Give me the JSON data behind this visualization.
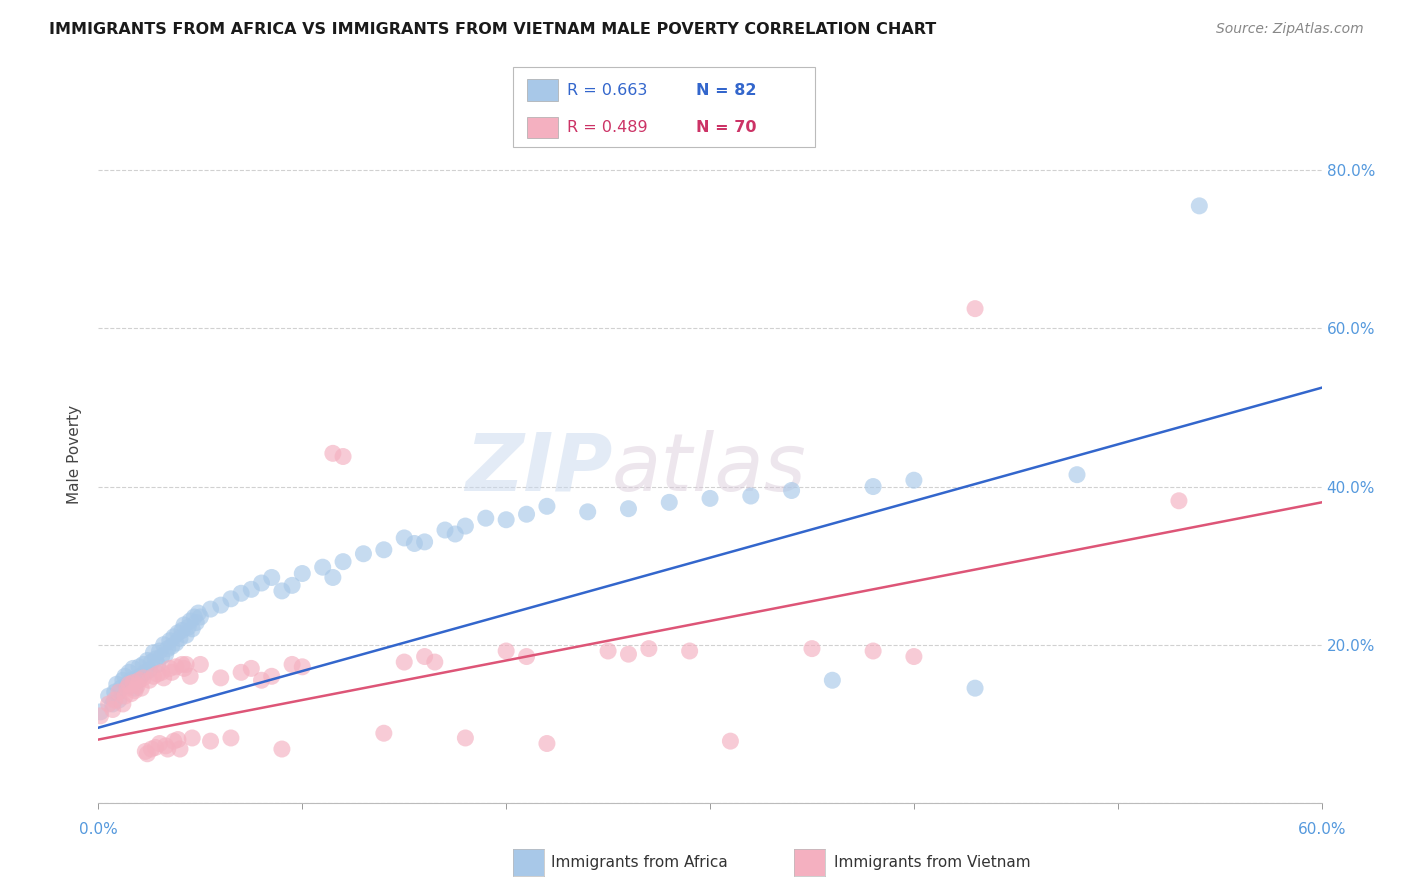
{
  "title": "IMMIGRANTS FROM AFRICA VS IMMIGRANTS FROM VIETNAM MALE POVERTY CORRELATION CHART",
  "source": "Source: ZipAtlas.com",
  "ylabel": "Male Poverty",
  "ytick_vals": [
    0.0,
    0.2,
    0.4,
    0.6,
    0.8
  ],
  "ytick_labels": [
    "",
    "20.0%",
    "40.0%",
    "60.0%",
    "80.0%"
  ],
  "xlim": [
    0.0,
    0.6
  ],
  "ylim": [
    0.0,
    0.88
  ],
  "legend_africa_r": "R = 0.663",
  "legend_africa_n": "N = 82",
  "legend_vietnam_r": "R = 0.489",
  "legend_vietnam_n": "N = 70",
  "watermark_zip": "ZIP",
  "watermark_atlas": "atlas",
  "africa_color": "#a8c8e8",
  "vietnam_color": "#f4b0c0",
  "africa_line_color": "#3366cc",
  "vietnam_line_color": "#dd5577",
  "africa_scatter": [
    [
      0.001,
      0.115
    ],
    [
      0.005,
      0.135
    ],
    [
      0.007,
      0.125
    ],
    [
      0.008,
      0.14
    ],
    [
      0.009,
      0.15
    ],
    [
      0.01,
      0.13
    ],
    [
      0.011,
      0.145
    ],
    [
      0.012,
      0.155
    ],
    [
      0.013,
      0.16
    ],
    [
      0.014,
      0.148
    ],
    [
      0.015,
      0.165
    ],
    [
      0.016,
      0.155
    ],
    [
      0.017,
      0.17
    ],
    [
      0.018,
      0.145
    ],
    [
      0.019,
      0.158
    ],
    [
      0.02,
      0.172
    ],
    [
      0.021,
      0.16
    ],
    [
      0.022,
      0.175
    ],
    [
      0.023,
      0.165
    ],
    [
      0.024,
      0.18
    ],
    [
      0.025,
      0.168
    ],
    [
      0.026,
      0.178
    ],
    [
      0.027,
      0.19
    ],
    [
      0.028,
      0.182
    ],
    [
      0.029,
      0.175
    ],
    [
      0.03,
      0.192
    ],
    [
      0.031,
      0.185
    ],
    [
      0.032,
      0.2
    ],
    [
      0.033,
      0.188
    ],
    [
      0.034,
      0.195
    ],
    [
      0.035,
      0.205
    ],
    [
      0.036,
      0.198
    ],
    [
      0.037,
      0.21
    ],
    [
      0.038,
      0.202
    ],
    [
      0.039,
      0.215
    ],
    [
      0.04,
      0.208
    ],
    [
      0.041,
      0.218
    ],
    [
      0.042,
      0.225
    ],
    [
      0.043,
      0.212
    ],
    [
      0.044,
      0.222
    ],
    [
      0.045,
      0.23
    ],
    [
      0.046,
      0.22
    ],
    [
      0.047,
      0.235
    ],
    [
      0.048,
      0.228
    ],
    [
      0.049,
      0.24
    ],
    [
      0.05,
      0.235
    ],
    [
      0.055,
      0.245
    ],
    [
      0.06,
      0.25
    ],
    [
      0.065,
      0.258
    ],
    [
      0.07,
      0.265
    ],
    [
      0.075,
      0.27
    ],
    [
      0.08,
      0.278
    ],
    [
      0.085,
      0.285
    ],
    [
      0.09,
      0.268
    ],
    [
      0.095,
      0.275
    ],
    [
      0.1,
      0.29
    ],
    [
      0.11,
      0.298
    ],
    [
      0.115,
      0.285
    ],
    [
      0.12,
      0.305
    ],
    [
      0.13,
      0.315
    ],
    [
      0.14,
      0.32
    ],
    [
      0.15,
      0.335
    ],
    [
      0.155,
      0.328
    ],
    [
      0.16,
      0.33
    ],
    [
      0.17,
      0.345
    ],
    [
      0.175,
      0.34
    ],
    [
      0.18,
      0.35
    ],
    [
      0.19,
      0.36
    ],
    [
      0.2,
      0.358
    ],
    [
      0.21,
      0.365
    ],
    [
      0.22,
      0.375
    ],
    [
      0.24,
      0.368
    ],
    [
      0.26,
      0.372
    ],
    [
      0.28,
      0.38
    ],
    [
      0.3,
      0.385
    ],
    [
      0.32,
      0.388
    ],
    [
      0.34,
      0.395
    ],
    [
      0.36,
      0.155
    ],
    [
      0.38,
      0.4
    ],
    [
      0.4,
      0.408
    ],
    [
      0.43,
      0.145
    ],
    [
      0.48,
      0.415
    ],
    [
      0.54,
      0.755
    ]
  ],
  "vietnam_scatter": [
    [
      0.001,
      0.11
    ],
    [
      0.005,
      0.125
    ],
    [
      0.007,
      0.118
    ],
    [
      0.008,
      0.13
    ],
    [
      0.01,
      0.14
    ],
    [
      0.012,
      0.125
    ],
    [
      0.013,
      0.135
    ],
    [
      0.014,
      0.145
    ],
    [
      0.015,
      0.15
    ],
    [
      0.016,
      0.138
    ],
    [
      0.017,
      0.152
    ],
    [
      0.018,
      0.142
    ],
    [
      0.019,
      0.148
    ],
    [
      0.02,
      0.155
    ],
    [
      0.021,
      0.145
    ],
    [
      0.022,
      0.158
    ],
    [
      0.023,
      0.065
    ],
    [
      0.024,
      0.062
    ],
    [
      0.025,
      0.155
    ],
    [
      0.026,
      0.068
    ],
    [
      0.027,
      0.16
    ],
    [
      0.028,
      0.07
    ],
    [
      0.029,
      0.163
    ],
    [
      0.03,
      0.075
    ],
    [
      0.031,
      0.165
    ],
    [
      0.032,
      0.158
    ],
    [
      0.033,
      0.072
    ],
    [
      0.034,
      0.068
    ],
    [
      0.035,
      0.17
    ],
    [
      0.036,
      0.165
    ],
    [
      0.037,
      0.078
    ],
    [
      0.038,
      0.172
    ],
    [
      0.039,
      0.08
    ],
    [
      0.04,
      0.068
    ],
    [
      0.041,
      0.175
    ],
    [
      0.042,
      0.17
    ],
    [
      0.043,
      0.175
    ],
    [
      0.045,
      0.16
    ],
    [
      0.046,
      0.082
    ],
    [
      0.05,
      0.175
    ],
    [
      0.055,
      0.078
    ],
    [
      0.06,
      0.158
    ],
    [
      0.065,
      0.082
    ],
    [
      0.07,
      0.165
    ],
    [
      0.075,
      0.17
    ],
    [
      0.08,
      0.155
    ],
    [
      0.085,
      0.16
    ],
    [
      0.09,
      0.068
    ],
    [
      0.095,
      0.175
    ],
    [
      0.1,
      0.172
    ],
    [
      0.115,
      0.442
    ],
    [
      0.12,
      0.438
    ],
    [
      0.14,
      0.088
    ],
    [
      0.15,
      0.178
    ],
    [
      0.16,
      0.185
    ],
    [
      0.165,
      0.178
    ],
    [
      0.18,
      0.082
    ],
    [
      0.2,
      0.192
    ],
    [
      0.21,
      0.185
    ],
    [
      0.22,
      0.075
    ],
    [
      0.25,
      0.192
    ],
    [
      0.26,
      0.188
    ],
    [
      0.27,
      0.195
    ],
    [
      0.29,
      0.192
    ],
    [
      0.31,
      0.078
    ],
    [
      0.35,
      0.195
    ],
    [
      0.38,
      0.192
    ],
    [
      0.4,
      0.185
    ],
    [
      0.43,
      0.625
    ],
    [
      0.53,
      0.382
    ]
  ],
  "africa_trendline_x": [
    0.0,
    0.6
  ],
  "africa_trendline_y": [
    0.095,
    0.525
  ],
  "vietnam_trendline_x": [
    0.0,
    0.6
  ],
  "vietnam_trendline_y": [
    0.08,
    0.38
  ]
}
